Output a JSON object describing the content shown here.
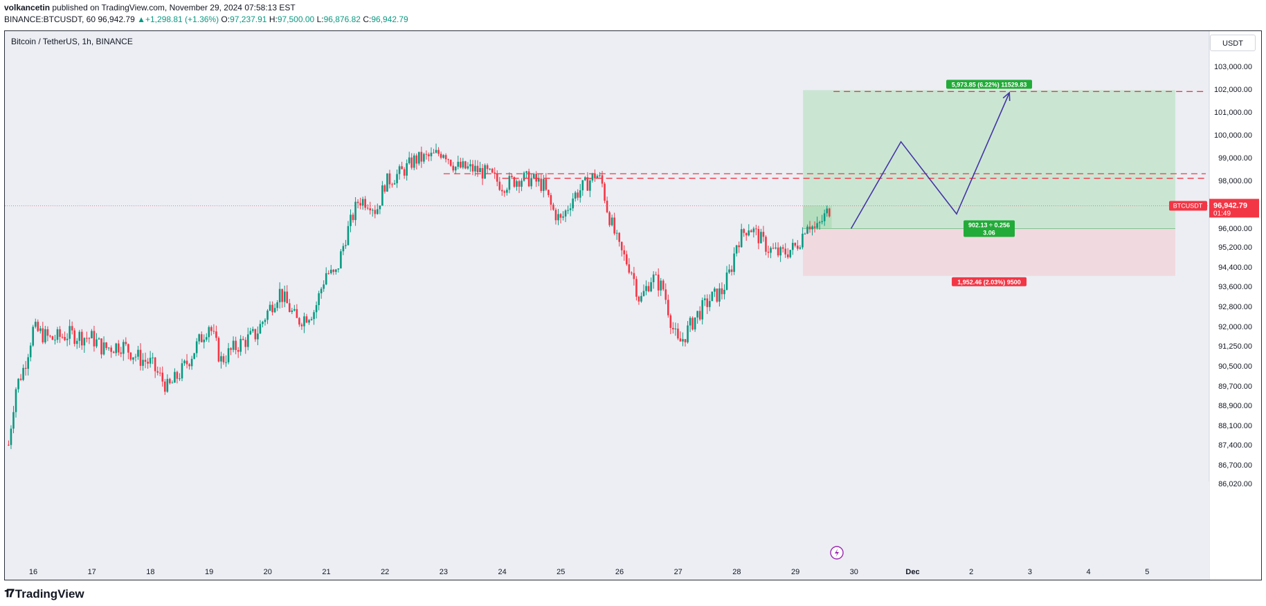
{
  "header": {
    "author": "volkancetin",
    "published": " published on TradingView.com, November 29, 2024 07:58:13 EST",
    "symbol": "BINANCE:BTCUSDT, 60",
    "price": "96,942.79",
    "change": "+1,298.81 (+1.36%)",
    "o_label": "O:",
    "o_value": "97,237.91",
    "h_label": "H:",
    "h_value": "97,500.00",
    "l_label": "L:",
    "l_value": "96,876.82",
    "c_label": "C:",
    "c_value": "96,942.79"
  },
  "chart_title": "Bitcoin / TetherUS, 1h, BINANCE",
  "currency_label": "USDT",
  "footer": {
    "logo_text": "TradingView"
  },
  "colors": {
    "up": "#089981",
    "down": "#f23645",
    "target_fill": "#bfe3c8",
    "stop_fill": "#f2d5dc",
    "target_badge": "#22ab38",
    "stop_badge": "#f23645",
    "path": "#4534a6",
    "level": "#f23645"
  },
  "chart_data": {
    "type": "candlestick",
    "title": "Bitcoin / TetherUS, 1h, BINANCE",
    "x_tick_labels": [
      "16",
      "17",
      "18",
      "19",
      "20",
      "21",
      "22",
      "23",
      "24",
      "25",
      "26",
      "27",
      "28",
      "29",
      "30",
      "Dec",
      "2",
      "3",
      "4",
      "5"
    ],
    "x_day_range": [
      15.5,
      36.2
    ],
    "y_tick_labels": [
      "103,000.00",
      "102,000.00",
      "101,000.00",
      "100,000.00",
      "99,000.00",
      "98,000.00",
      "96,000.00",
      "95,200.00",
      "94,400.00",
      "93,600.00",
      "92,800.00",
      "92,000.00",
      "91,250.00",
      "90,500.00",
      "89,700.00",
      "88,900.00",
      "88,100.00",
      "87,400.00",
      "86,700.00",
      "86,020.00"
    ],
    "close_path": [
      [
        15.58,
        87400
      ],
      [
        15.7,
        89600
      ],
      [
        15.85,
        90500
      ],
      [
        16.0,
        91900
      ],
      [
        16.3,
        91500
      ],
      [
        16.6,
        91700
      ],
      [
        17.0,
        91550
      ],
      [
        17.2,
        91150
      ],
      [
        17.5,
        91300
      ],
      [
        17.8,
        90800
      ],
      [
        18.0,
        90600
      ],
      [
        18.3,
        89600
      ],
      [
        18.55,
        90350
      ],
      [
        18.8,
        91300
      ],
      [
        19.0,
        92100
      ],
      [
        19.2,
        90700
      ],
      [
        19.5,
        91300
      ],
      [
        19.8,
        91700
      ],
      [
        20.0,
        92600
      ],
      [
        20.2,
        93400
      ],
      [
        20.5,
        92200
      ],
      [
        20.8,
        92650
      ],
      [
        21.0,
        94200
      ],
      [
        21.15,
        94000
      ],
      [
        21.35,
        95800
      ],
      [
        21.55,
        97200
      ],
      [
        21.75,
        97100
      ],
      [
        21.85,
        96700
      ],
      [
        22.0,
        97900
      ],
      [
        22.3,
        98400
      ],
      [
        22.5,
        98900
      ],
      [
        22.8,
        99050
      ],
      [
        23.0,
        99300
      ],
      [
        23.2,
        98600
      ],
      [
        23.5,
        98500
      ],
      [
        23.75,
        98300
      ],
      [
        24.0,
        97800
      ],
      [
        24.3,
        98100
      ],
      [
        24.5,
        98050
      ],
      [
        24.7,
        97800
      ],
      [
        24.85,
        96800
      ],
      [
        25.0,
        96300
      ],
      [
        25.2,
        97300
      ],
      [
        25.45,
        97900
      ],
      [
        25.6,
        98300
      ],
      [
        25.7,
        97900
      ],
      [
        25.8,
        96700
      ],
      [
        26.0,
        95100
      ],
      [
        26.2,
        94300
      ],
      [
        26.35,
        93000
      ],
      [
        26.55,
        94000
      ],
      [
        26.75,
        93500
      ],
      [
        26.9,
        92000
      ],
      [
        27.0,
        91300
      ],
      [
        27.1,
        91600
      ],
      [
        27.3,
        92400
      ],
      [
        27.55,
        93100
      ],
      [
        27.75,
        93400
      ],
      [
        27.9,
        94300
      ],
      [
        28.0,
        95400
      ],
      [
        28.2,
        96100
      ],
      [
        28.35,
        95700
      ],
      [
        28.55,
        95100
      ],
      [
        28.75,
        94900
      ],
      [
        29.0,
        95200
      ],
      [
        29.1,
        95600
      ],
      [
        29.2,
        96300
      ],
      [
        29.35,
        95900
      ],
      [
        29.5,
        96500
      ],
      [
        29.62,
        96943
      ]
    ],
    "horizontal_levels": [
      {
        "from_day": 23.0,
        "to_day": 36.0,
        "value": 98300
      },
      {
        "from_day": 24.0,
        "to_day": 36.0,
        "value": 98100
      },
      {
        "from_day": 29.65,
        "to_day": 36.0,
        "value": 101900
      }
    ],
    "long_position": {
      "from_day": 29.13,
      "to_day": 35.48,
      "entry": 95987,
      "target": 101960,
      "stop": 94035,
      "target_label": "5,973.85 (6.22%) 11529.83",
      "entry_label_line1": "902.13 ÷ 0.256",
      "entry_label_line2": "3.06",
      "stop_label": "1,952.46 (2.03%) 9500"
    },
    "projection_path": [
      [
        29.95,
        95987
      ],
      [
        30.8,
        99700
      ],
      [
        31.75,
        96600
      ],
      [
        32.65,
        101850
      ]
    ],
    "last_price": {
      "symbol": "BTCUSDT",
      "value": "96,942.79",
      "countdown": "01:49",
      "numeric": 96942.79
    }
  }
}
